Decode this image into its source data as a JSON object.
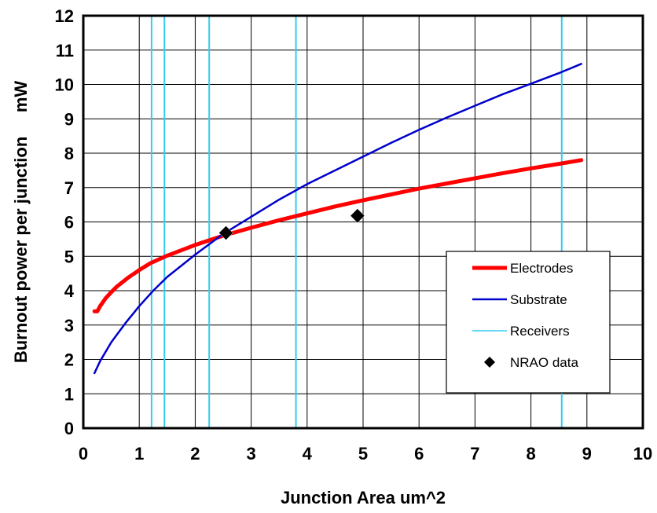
{
  "chart_data": {
    "type": "line",
    "title": "",
    "xlabel": "Junction Area  um^2",
    "ylabel": "Burnout power per junction     mW",
    "xlim": [
      0,
      10
    ],
    "ylim": [
      0,
      12
    ],
    "x_ticks": [
      "0",
      "1",
      "2",
      "3",
      "4",
      "5",
      "6",
      "7",
      "8",
      "9",
      "10"
    ],
    "y_ticks": [
      "0",
      "1",
      "2",
      "3",
      "4",
      "5",
      "6",
      "7",
      "8",
      "9",
      "10",
      "11",
      "12"
    ],
    "grid": true,
    "legend_position": "lower-right",
    "series": [
      {
        "name": "Electrodes",
        "kind": "line",
        "color": "#ff0000",
        "x": [
          0.2,
          0.25,
          0.3,
          0.4,
          0.5,
          0.6,
          0.8,
          1.0,
          1.2,
          1.5,
          2.0,
          2.5,
          3.0,
          3.5,
          4.0,
          4.5,
          5.0,
          5.5,
          6.0,
          6.5,
          7.0,
          7.5,
          8.0,
          8.5,
          8.9
        ],
        "y": [
          3.4,
          3.4,
          3.55,
          3.78,
          3.96,
          4.12,
          4.38,
          4.6,
          4.8,
          5.02,
          5.33,
          5.6,
          5.83,
          6.05,
          6.25,
          6.45,
          6.63,
          6.8,
          6.97,
          7.12,
          7.27,
          7.42,
          7.56,
          7.69,
          7.8
        ]
      },
      {
        "name": "Substrate",
        "kind": "line",
        "color": "#0000cc",
        "x": [
          0.2,
          0.3,
          0.5,
          0.75,
          1.0,
          1.25,
          1.5,
          2.0,
          2.5,
          3.0,
          3.5,
          4.0,
          4.5,
          5.0,
          5.5,
          6.0,
          6.5,
          7.0,
          7.5,
          8.0,
          8.5,
          8.9
        ],
        "y": [
          1.6,
          1.95,
          2.5,
          3.05,
          3.55,
          4.0,
          4.4,
          5.05,
          5.65,
          6.15,
          6.65,
          7.1,
          7.5,
          7.9,
          8.3,
          8.68,
          9.04,
          9.38,
          9.72,
          10.02,
          10.33,
          10.6
        ]
      },
      {
        "name": "Receivers",
        "kind": "vertical-lines",
        "color": "#33ccee",
        "x": [
          1.22,
          1.45,
          2.25,
          3.8,
          8.55
        ]
      },
      {
        "name": "NRAO data",
        "kind": "points",
        "marker": "diamond",
        "color": "#000000",
        "x": [
          2.55,
          4.9
        ],
        "y": [
          5.68,
          6.18
        ]
      }
    ]
  }
}
